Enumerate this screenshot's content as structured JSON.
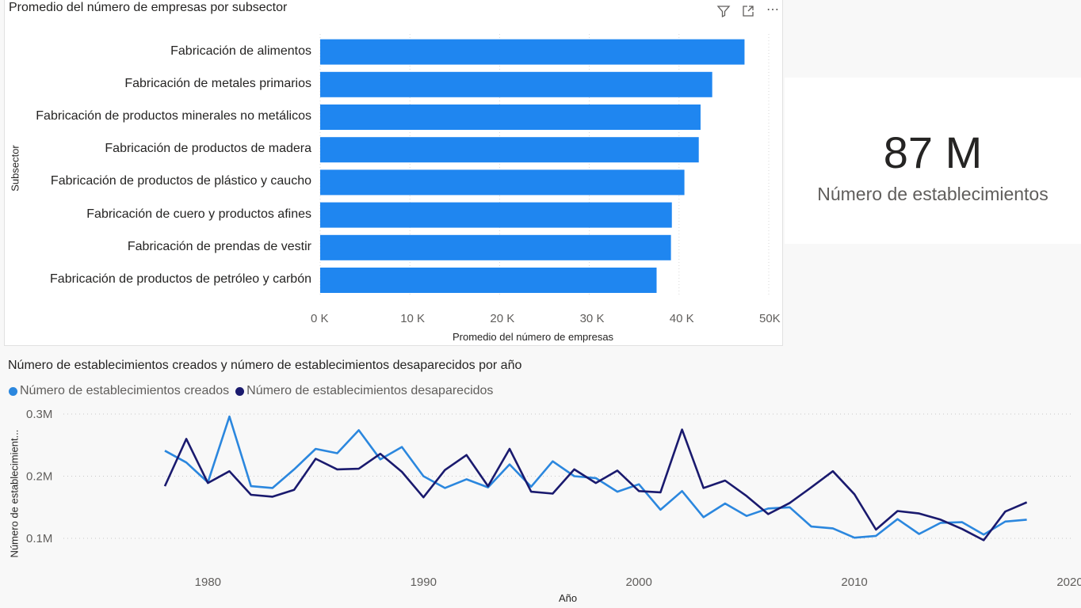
{
  "bar_chart": {
    "title": "Promedio del número de empresas por subsector",
    "toolbar": {
      "filter_icon": "filter-icon",
      "focus_icon": "focus-mode-icon",
      "more_icon": "more-options-icon",
      "more_label": "⋯"
    }
  },
  "kpi_card": {
    "value": "87 M",
    "label": "Número de establecimientos"
  },
  "line_chart": {
    "title": "Número de establecimientos creados y número de establecimientos desaparecidos por año",
    "legend": [
      {
        "label": "Número de establecimientos creados",
        "color": "#2b87de"
      },
      {
        "label": "Número de establecimientos desaparecidos",
        "color": "#1a1a6e"
      }
    ]
  },
  "chart_data": [
    {
      "type": "bar",
      "orientation": "horizontal",
      "title": "Promedio del número de empresas por subsector",
      "xlabel": "Promedio del número de empresas",
      "ylabel": "Subsector",
      "categories": [
        "Fabricación de alimentos",
        "Fabricación de metales primarios",
        "Fabricación de productos minerales no metálicos",
        "Fabricación de productos de madera",
        "Fabricación de productos de plástico y caucho",
        "Fabricación de cuero y productos afines",
        "Fabricación de prendas de vestir",
        "Fabricación de productos de petróleo y carbón"
      ],
      "values": [
        47300,
        43700,
        42400,
        42200,
        40600,
        39200,
        39100,
        37500
      ],
      "xlim": [
        0,
        50000
      ],
      "xticks": [
        "0 K",
        "10 K",
        "20 K",
        "30 K",
        "40 K",
        "50K"
      ],
      "color": "#1f86f0",
      "grid": true
    },
    {
      "type": "line",
      "title": "Número de establecimientos creados y número de establecimientos desaparecidos por año",
      "xlabel": "Año",
      "ylabel": "Número de establecimient...",
      "xlim": [
        1973,
        2020
      ],
      "ylim": [
        0.05,
        0.3
      ],
      "xticks": [
        "1980",
        "1990",
        "2000",
        "2010",
        "2020"
      ],
      "yticks": [
        "0.3M",
        "0.2M",
        "0.1M"
      ],
      "x": [
        1978,
        1979,
        1980,
        1981,
        1982,
        1983,
        1984,
        1985,
        1986,
        1987,
        1988,
        1989,
        1990,
        1991,
        1992,
        1993,
        1994,
        1995,
        1996,
        1997,
        1998,
        1999,
        2000,
        2001,
        2002,
        2003,
        2004,
        2005,
        2006,
        2007,
        2008,
        2009,
        2010,
        2011,
        2012,
        2013,
        2014,
        2015,
        2016,
        2017,
        2018
      ],
      "series": [
        {
          "name": "Número de establecimientos creados",
          "color": "#2b87de",
          "values": [
            0.241,
            0.222,
            0.19,
            0.296,
            0.184,
            0.181,
            0.211,
            0.244,
            0.237,
            0.274,
            0.227,
            0.247,
            0.2,
            0.181,
            0.195,
            0.182,
            0.219,
            0.183,
            0.224,
            0.2,
            0.197,
            0.175,
            0.187,
            0.146,
            0.176,
            0.134,
            0.156,
            0.136,
            0.148,
            0.15,
            0.119,
            0.116,
            0.101,
            0.104,
            0.131,
            0.107,
            0.125,
            0.126,
            0.106,
            0.127,
            0.13
          ]
        },
        {
          "name": "Número de establecimientos desaparecidos",
          "color": "#1a1a6e",
          "values": [
            0.184,
            0.26,
            0.189,
            0.208,
            0.17,
            0.167,
            0.178,
            0.228,
            0.211,
            0.212,
            0.236,
            0.207,
            0.166,
            0.21,
            0.234,
            0.184,
            0.244,
            0.175,
            0.172,
            0.211,
            0.189,
            0.209,
            0.176,
            0.174,
            0.275,
            0.181,
            0.193,
            0.168,
            0.139,
            0.157,
            0.182,
            0.208,
            0.171,
            0.114,
            0.144,
            0.14,
            0.13,
            0.115,
            0.097,
            0.143,
            0.158
          ]
        }
      ],
      "grid": true,
      "legend_position": "top-left"
    }
  ]
}
